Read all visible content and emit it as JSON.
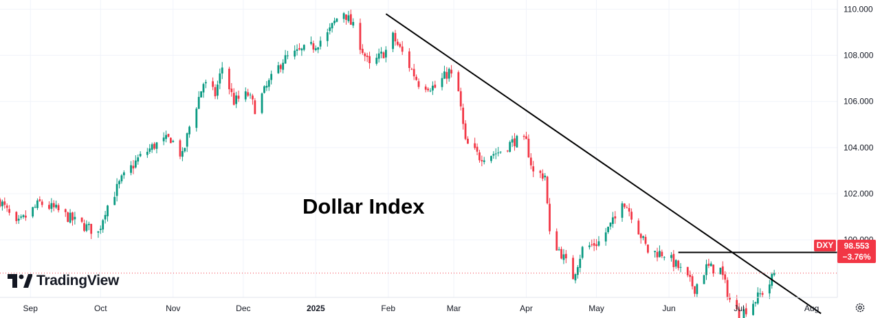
{
  "chart_data": {
    "type": "candlestick",
    "title": "Dollar Index",
    "symbol": "DXY",
    "last_price": "98.553",
    "change_pct": "−3.76%",
    "ylim": [
      97.5,
      110.4
    ],
    "y_ticks": [
      "110.000",
      "108.000",
      "106.000",
      "104.000",
      "102.000",
      "100.000"
    ],
    "x_ticks": [
      {
        "label": "Sep",
        "date": "2024-09-01"
      },
      {
        "label": "Oct",
        "date": "2024-10-01"
      },
      {
        "label": "Nov",
        "date": "2024-11-01"
      },
      {
        "label": "Dec",
        "date": "2024-12-01"
      },
      {
        "label": "2025",
        "date": "2025-01-01",
        "bold": true
      },
      {
        "label": "Feb",
        "date": "2025-02-01"
      },
      {
        "label": "Mar",
        "date": "2025-03-01"
      },
      {
        "label": "Apr",
        "date": "2025-04-01"
      },
      {
        "label": "May",
        "date": "2025-05-01"
      },
      {
        "label": "Jun",
        "date": "2025-06-01"
      },
      {
        "label": "Jul",
        "date": "2025-07-01"
      },
      {
        "label": "Aug",
        "date": "2025-08-01"
      }
    ],
    "x_range": [
      "2024-08-19",
      "2025-08-12"
    ],
    "close_path": [
      [
        "2024-08-19",
        101.7
      ],
      [
        "2024-08-26",
        100.6
      ],
      [
        "2024-09-05",
        101.6
      ],
      [
        "2024-09-12",
        101.3
      ],
      [
        "2024-09-20",
        100.8
      ],
      [
        "2024-09-30",
        100.3
      ],
      [
        "2024-10-03",
        101.3
      ],
      [
        "2024-10-10",
        102.6
      ],
      [
        "2024-10-17",
        103.5
      ],
      [
        "2024-10-24",
        104.1
      ],
      [
        "2024-10-31",
        104.4
      ],
      [
        "2024-11-05",
        103.6
      ],
      [
        "2024-11-08",
        104.9
      ],
      [
        "2024-11-14",
        106.8
      ],
      [
        "2024-11-19",
        106.3
      ],
      [
        "2024-11-22",
        107.5
      ],
      [
        "2024-11-27",
        106.0
      ],
      [
        "2024-12-03",
        106.3
      ],
      [
        "2024-12-06",
        105.7
      ],
      [
        "2024-12-12",
        106.8
      ],
      [
        "2024-12-18",
        107.8
      ],
      [
        "2024-12-24",
        108.1
      ],
      [
        "2024-12-31",
        108.4
      ],
      [
        "2025-01-06",
        108.9
      ],
      [
        "2025-01-10",
        109.6
      ],
      [
        "2025-01-13",
        109.9
      ],
      [
        "2025-01-17",
        109.2
      ],
      [
        "2025-01-24",
        107.5
      ],
      [
        "2025-01-31",
        108.2
      ],
      [
        "2025-02-03",
        108.8
      ],
      [
        "2025-02-07",
        108.1
      ],
      [
        "2025-02-14",
        106.8
      ],
      [
        "2025-02-21",
        106.6
      ],
      [
        "2025-02-27",
        107.3
      ],
      [
        "2025-03-03",
        106.4
      ],
      [
        "2025-03-06",
        104.2
      ],
      [
        "2025-03-12",
        103.6
      ],
      [
        "2025-03-20",
        103.8
      ],
      [
        "2025-03-27",
        104.3
      ],
      [
        "2025-04-01",
        104.2
      ],
      [
        "2025-04-04",
        102.9
      ],
      [
        "2025-04-09",
        102.8
      ],
      [
        "2025-04-11",
        100.2
      ],
      [
        "2025-04-16",
        99.4
      ],
      [
        "2025-04-21",
        98.4
      ],
      [
        "2025-04-25",
        99.6
      ],
      [
        "2025-05-02",
        99.9
      ],
      [
        "2025-05-09",
        100.9
      ],
      [
        "2025-05-12",
        101.8
      ],
      [
        "2025-05-16",
        101.1
      ],
      [
        "2025-05-23",
        99.5
      ],
      [
        "2025-05-30",
        99.4
      ],
      [
        "2025-06-05",
        98.8
      ],
      [
        "2025-06-12",
        97.9
      ],
      [
        "2025-06-17",
        98.8
      ],
      [
        "2025-06-23",
        98.7
      ],
      [
        "2025-06-27",
        97.4
      ],
      [
        "2025-07-01",
        96.7
      ],
      [
        "2025-07-04",
        97.0
      ],
      [
        "2025-07-09",
        97.5
      ],
      [
        "2025-07-14",
        98.1
      ],
      [
        "2025-07-16",
        98.55
      ]
    ],
    "annotations": [
      {
        "type": "trendline",
        "from": [
          "2025-01-31",
          109.8
        ],
        "to": [
          "2025-08-05",
          96.8
        ]
      },
      {
        "type": "horizontal",
        "from": "2025-06-05",
        "value": 99.45
      },
      {
        "type": "price_line",
        "value": 98.553
      }
    ]
  },
  "brand": {
    "name": "TradingView"
  }
}
